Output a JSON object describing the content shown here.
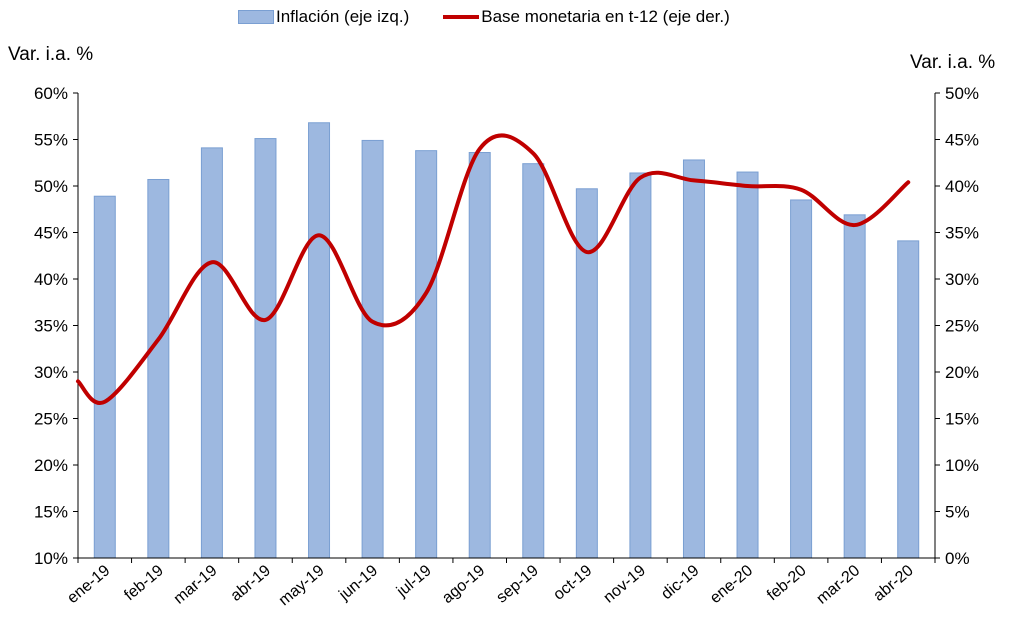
{
  "chart_data": {
    "type": "bar+line",
    "categories": [
      "ene-19",
      "feb-19",
      "mar-19",
      "abr-19",
      "may-19",
      "jun-19",
      "jul-19",
      "ago-19",
      "sep-19",
      "oct-19",
      "nov-19",
      "dic-19",
      "ene-20",
      "feb-20",
      "mar-20",
      "abr-20"
    ],
    "series": [
      {
        "name": "Inflación (eje izq.)",
        "type": "bar",
        "axis": "left",
        "color": "#9db8e0",
        "values": [
          48.9,
          50.7,
          54.1,
          55.1,
          56.8,
          54.9,
          53.8,
          53.6,
          52.4,
          49.7,
          51.4,
          52.8,
          51.5,
          48.5,
          46.9,
          44.1
        ]
      },
      {
        "name": "Base monetaria en t-12 (eje der.)",
        "type": "line",
        "axis": "right",
        "color": "#c00000",
        "x": [
          -0.5,
          0,
          1,
          2,
          3,
          4,
          5,
          6,
          7,
          8,
          9,
          10,
          11,
          12,
          13,
          14,
          15
        ],
        "values": [
          19.0,
          16.8,
          23.5,
          31.8,
          25.6,
          34.7,
          25.4,
          28.5,
          44.0,
          43.5,
          32.9,
          40.9,
          40.6,
          40.0,
          39.6,
          35.8,
          40.4
        ]
      }
    ],
    "ylabel_left": "Var. i.a. %",
    "ylabel_right": "Var. i.a. %",
    "ylim_left": [
      10,
      60
    ],
    "ylim_right": [
      0,
      50
    ],
    "yticks_left": [
      "10%",
      "15%",
      "20%",
      "25%",
      "30%",
      "35%",
      "40%",
      "45%",
      "50%",
      "55%",
      "60%"
    ],
    "yticks_right": [
      "0%",
      "5%",
      "10%",
      "15%",
      "20%",
      "25%",
      "30%",
      "35%",
      "40%",
      "45%",
      "50%"
    ],
    "grid": false,
    "legend_position": "top"
  }
}
